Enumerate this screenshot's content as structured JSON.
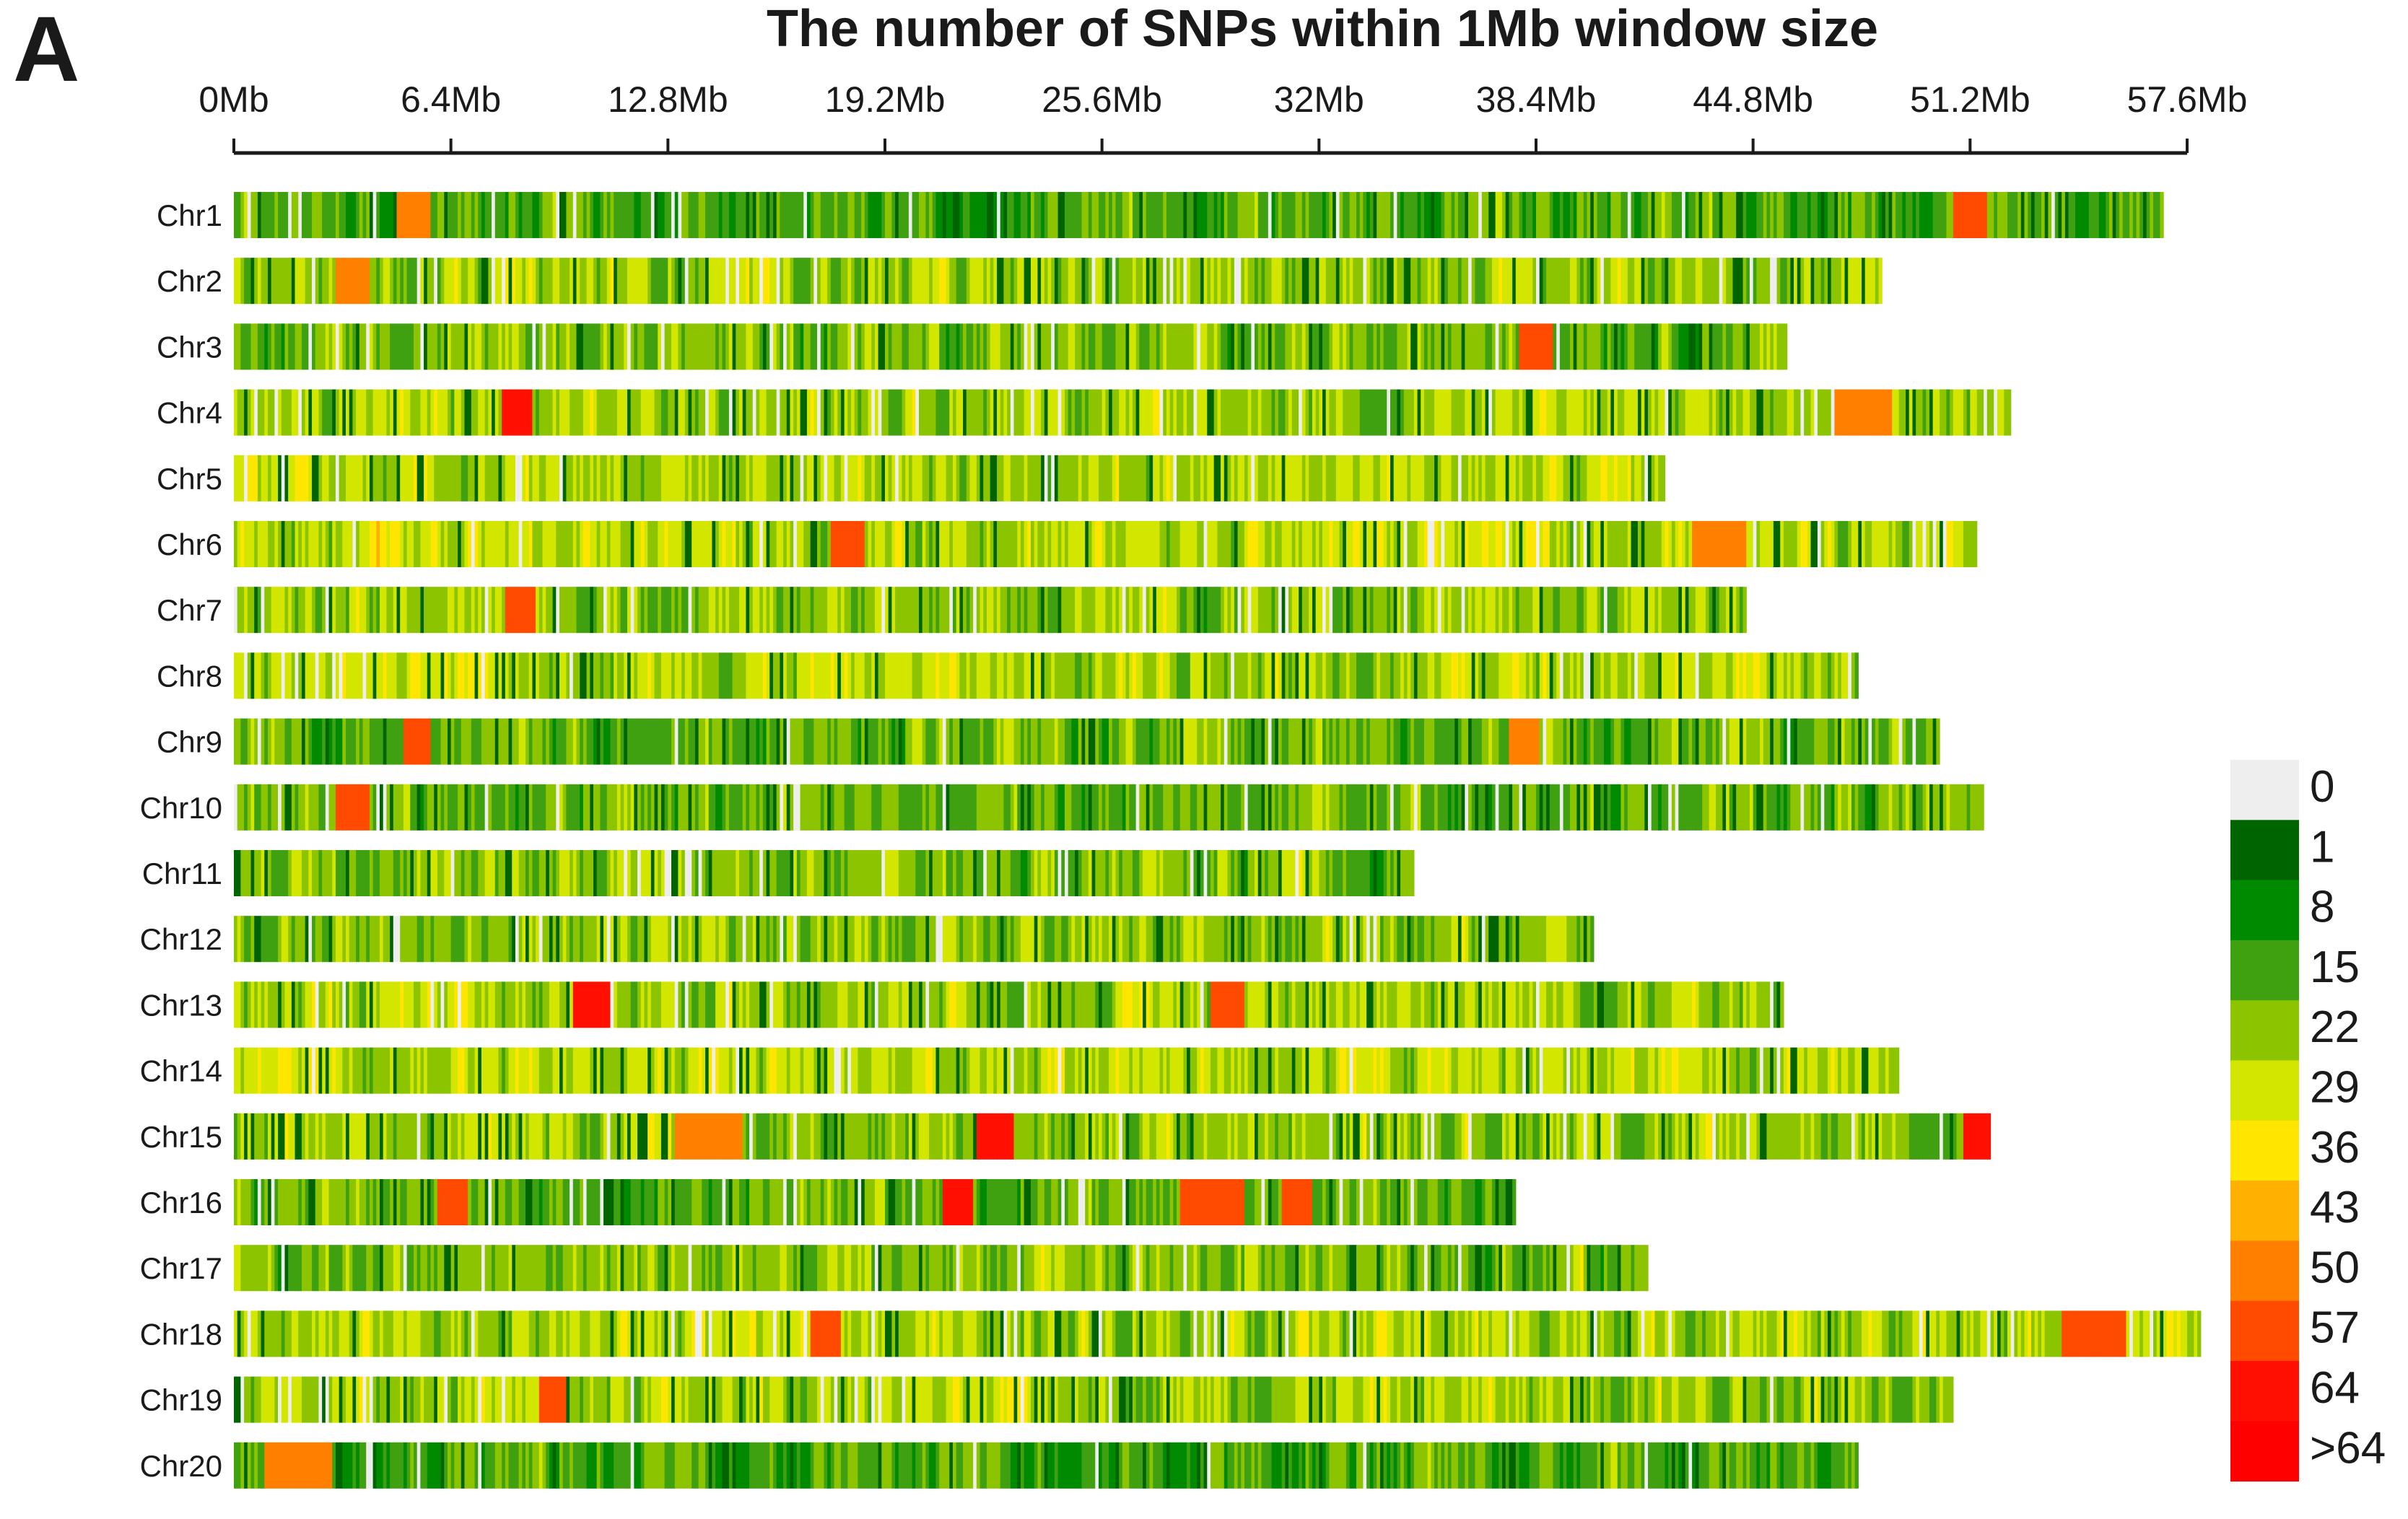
{
  "panel_label": "A",
  "chart_data": {
    "type": "heatmap",
    "title": "The number of SNPs within 1Mb window size",
    "xlabel": "",
    "ylabel": "",
    "x_unit": "Mb",
    "window_size_mb": 1,
    "xlim": [
      0,
      57.6
    ],
    "x_ticks": [
      {
        "value": 0,
        "label": "0Mb"
      },
      {
        "value": 6.4,
        "label": "6.4Mb"
      },
      {
        "value": 12.8,
        "label": "12.8Mb"
      },
      {
        "value": 19.2,
        "label": "19.2Mb"
      },
      {
        "value": 25.6,
        "label": "25.6Mb"
      },
      {
        "value": 32,
        "label": "32Mb"
      },
      {
        "value": 38.4,
        "label": "38.4Mb"
      },
      {
        "value": 44.8,
        "label": "44.8Mb"
      },
      {
        "value": 51.2,
        "label": "51.2Mb"
      },
      {
        "value": 57.6,
        "label": "57.6Mb"
      }
    ],
    "chromosomes": [
      {
        "name": "Chr1",
        "length_mb": 56.9
      },
      {
        "name": "Chr2",
        "length_mb": 48.6
      },
      {
        "name": "Chr3",
        "length_mb": 45.8
      },
      {
        "name": "Chr4",
        "length_mb": 52.4
      },
      {
        "name": "Chr5",
        "length_mb": 42.2
      },
      {
        "name": "Chr6",
        "length_mb": 51.4
      },
      {
        "name": "Chr7",
        "length_mb": 44.6
      },
      {
        "name": "Chr8",
        "length_mb": 47.9
      },
      {
        "name": "Chr9",
        "length_mb": 50.3
      },
      {
        "name": "Chr10",
        "length_mb": 51.6
      },
      {
        "name": "Chr11",
        "length_mb": 34.8
      },
      {
        "name": "Chr12",
        "length_mb": 40.1
      },
      {
        "name": "Chr13",
        "length_mb": 45.7
      },
      {
        "name": "Chr14",
        "length_mb": 49.1
      },
      {
        "name": "Chr15",
        "length_mb": 51.8
      },
      {
        "name": "Chr16",
        "length_mb": 37.8
      },
      {
        "name": "Chr17",
        "length_mb": 41.7
      },
      {
        "name": "Chr18",
        "length_mb": 58.0
      },
      {
        "name": "Chr19",
        "length_mb": 50.7
      },
      {
        "name": "Chr20",
        "length_mb": 47.9
      }
    ],
    "hotspots": [
      {
        "chr": "Chr1",
        "start_mb": 4.8,
        "end_mb": 5.8,
        "level": 50
      },
      {
        "chr": "Chr1",
        "start_mb": 50.7,
        "end_mb": 51.7,
        "level": 57
      },
      {
        "chr": "Chr2",
        "start_mb": 3.0,
        "end_mb": 4.0,
        "level": 50
      },
      {
        "chr": "Chr3",
        "start_mb": 37.9,
        "end_mb": 38.9,
        "level": 57
      },
      {
        "chr": "Chr4",
        "start_mb": 7.9,
        "end_mb": 8.8,
        "level": 64
      },
      {
        "chr": "Chr4",
        "start_mb": 47.2,
        "end_mb": 48.9,
        "level": 50
      },
      {
        "chr": "Chr6",
        "start_mb": 17.6,
        "end_mb": 18.6,
        "level": 57
      },
      {
        "chr": "Chr6",
        "start_mb": 43.0,
        "end_mb": 44.6,
        "level": 50
      },
      {
        "chr": "Chr7",
        "start_mb": 8.0,
        "end_mb": 8.9,
        "level": 57
      },
      {
        "chr": "Chr9",
        "start_mb": 5.0,
        "end_mb": 5.8,
        "level": 57
      },
      {
        "chr": "Chr9",
        "start_mb": 37.6,
        "end_mb": 38.5,
        "level": 50
      },
      {
        "chr": "Chr10",
        "start_mb": 3.0,
        "end_mb": 4.0,
        "level": 57
      },
      {
        "chr": "Chr13",
        "start_mb": 10.0,
        "end_mb": 11.1,
        "level": 64
      },
      {
        "chr": "Chr13",
        "start_mb": 28.8,
        "end_mb": 29.8,
        "level": 57
      },
      {
        "chr": "Chr15",
        "start_mb": 21.9,
        "end_mb": 23.0,
        "level": 64
      },
      {
        "chr": "Chr15",
        "start_mb": 51.0,
        "end_mb": 51.8,
        "level": 64
      },
      {
        "chr": "Chr15",
        "start_mb": 13.0,
        "end_mb": 15.0,
        "level": 50
      },
      {
        "chr": "Chr16",
        "start_mb": 20.9,
        "end_mb": 21.8,
        "level": 64
      },
      {
        "chr": "Chr16",
        "start_mb": 27.9,
        "end_mb": 29.8,
        "level": 57
      },
      {
        "chr": "Chr16",
        "start_mb": 30.9,
        "end_mb": 31.8,
        "level": 57
      },
      {
        "chr": "Chr16",
        "start_mb": 6.0,
        "end_mb": 6.9,
        "level": 57
      },
      {
        "chr": "Chr18",
        "start_mb": 53.9,
        "end_mb": 55.8,
        "level": 57
      },
      {
        "chr": "Chr18",
        "start_mb": 17.0,
        "end_mb": 17.9,
        "level": 57
      },
      {
        "chr": "Chr19",
        "start_mb": 9.0,
        "end_mb": 9.8,
        "level": 57
      },
      {
        "chr": "Chr20",
        "start_mb": 0.9,
        "end_mb": 2.9,
        "level": 50
      }
    ],
    "legend": {
      "title": "",
      "levels": [
        {
          "label": "0",
          "color": "#eeeeee"
        },
        {
          "label": "1",
          "color": "#006400"
        },
        {
          "label": "8",
          "color": "#008a00"
        },
        {
          "label": "15",
          "color": "#3fa010"
        },
        {
          "label": "22",
          "color": "#8cc400"
        },
        {
          "label": "29",
          "color": "#d2e600"
        },
        {
          "label": "36",
          "color": "#ffe600"
        },
        {
          "label": "43",
          "color": "#ffb000"
        },
        {
          "label": "50",
          "color": "#ff8000"
        },
        {
          "label": "57",
          "color": "#ff4a00"
        },
        {
          "label": "64",
          "color": "#ff1000"
        },
        {
          "label": ">64",
          "color": "#ff0000"
        }
      ]
    }
  }
}
